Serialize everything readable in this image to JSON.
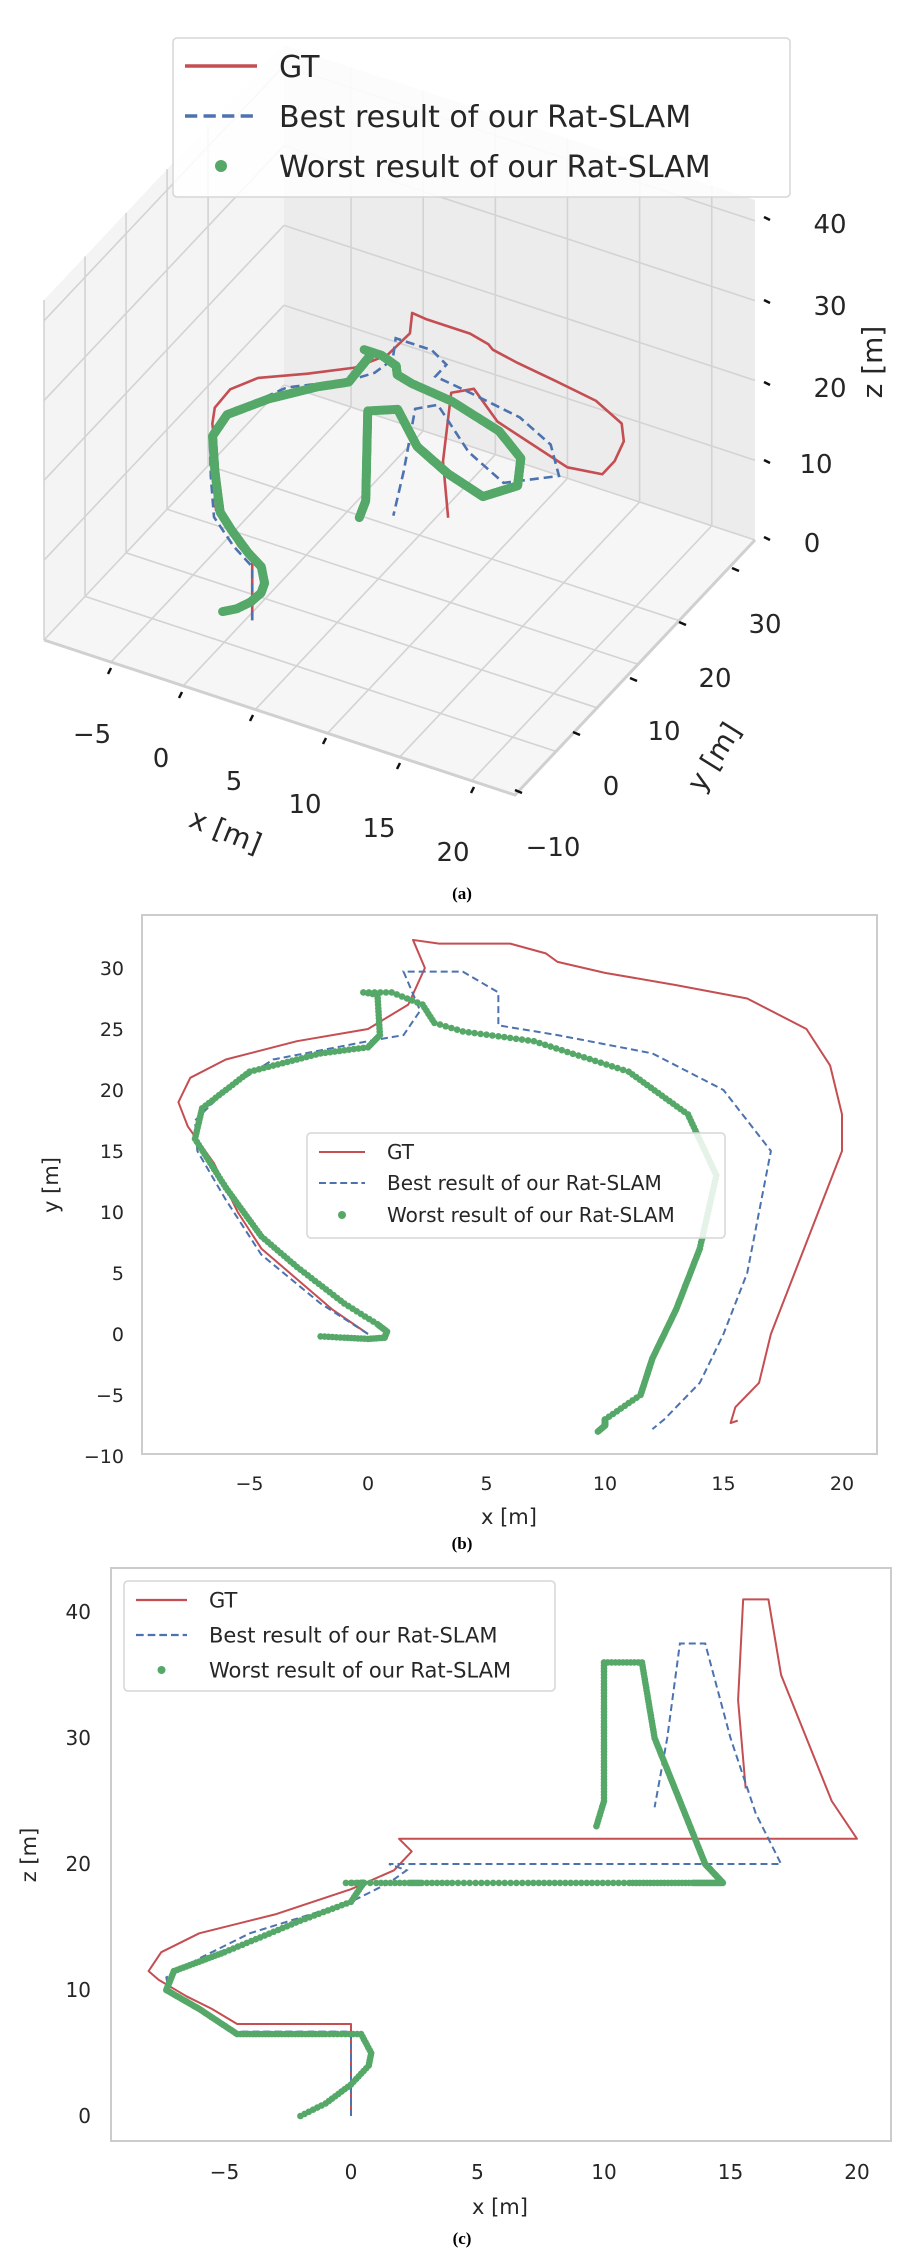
{
  "colors": {
    "gt": "#c44e52",
    "best": "#4c72b0",
    "worst": "#55a868",
    "pane": "#f2f2f2",
    "grid": "#d3d3d3"
  },
  "legend": {
    "gt": "GT",
    "best": "Best result of our Rat-SLAM",
    "worst": "Worst result of our Rat-SLAM"
  },
  "captions": {
    "a": "(a)",
    "b": "(b)",
    "c": "(c)"
  },
  "trajectories": {
    "gt": [
      [
        0,
        0,
        0
      ],
      [
        0,
        0,
        7.3
      ],
      [
        -1.5,
        2,
        7.3
      ],
      [
        -3,
        4.5,
        7.3
      ],
      [
        -4.5,
        7,
        7.3
      ],
      [
        -5.5,
        10,
        8.5
      ],
      [
        -6.5,
        14,
        9.5
      ],
      [
        -7.6,
        17,
        10.8
      ],
      [
        -8,
        19,
        11.5
      ],
      [
        -7.5,
        21,
        13
      ],
      [
        -6,
        22.5,
        14.5
      ],
      [
        -3,
        24,
        16
      ],
      [
        0,
        25,
        18
      ],
      [
        1.7,
        27,
        19.5
      ],
      [
        2.4,
        30,
        21
      ],
      [
        1.9,
        32.3,
        22
      ],
      [
        3,
        32,
        22
      ],
      [
        6,
        32,
        22
      ],
      [
        7.5,
        31.2,
        22
      ],
      [
        8,
        30.5,
        22
      ],
      [
        10,
        29.6,
        22
      ],
      [
        13,
        28.6,
        22
      ],
      [
        16,
        27.5,
        22
      ],
      [
        18.5,
        25,
        22
      ],
      [
        19.5,
        22,
        22
      ],
      [
        20,
        18,
        22
      ],
      [
        20,
        15,
        22
      ],
      [
        19,
        10,
        25
      ],
      [
        18,
        5,
        30
      ],
      [
        17,
        0,
        35
      ],
      [
        16.5,
        -4,
        41
      ],
      [
        15.5,
        -6,
        41
      ],
      [
        15.3,
        -7.3,
        33
      ],
      [
        15.6,
        -7.1,
        26
      ]
    ],
    "best": [
      [
        0,
        0,
        0
      ],
      [
        0,
        0,
        6.7
      ],
      [
        -2,
        2.5,
        6.7
      ],
      [
        -4.5,
        6.5,
        6.7
      ],
      [
        -6,
        11,
        8.5
      ],
      [
        -7.2,
        15,
        10
      ],
      [
        -7.3,
        17.5,
        11
      ],
      [
        -6,
        20,
        12.5
      ],
      [
        -4,
        22.5,
        14.5
      ],
      [
        0,
        24,
        17
      ],
      [
        1.5,
        24.5,
        18.5
      ],
      [
        2.2,
        26.5,
        19.5
      ],
      [
        1.5,
        29.7,
        20
      ],
      [
        4,
        29.7,
        20
      ],
      [
        5.5,
        28,
        20
      ],
      [
        5.5,
        25.3,
        20
      ],
      [
        8,
        24.5,
        20
      ],
      [
        12,
        23,
        20
      ],
      [
        15,
        20,
        20
      ],
      [
        17,
        15,
        20
      ],
      [
        16.5,
        10,
        22
      ],
      [
        16,
        5,
        24
      ],
      [
        15,
        0,
        30
      ],
      [
        14,
        -4,
        37.5
      ],
      [
        13,
        -6,
        37.5
      ],
      [
        12.5,
        -7,
        30
      ],
      [
        12,
        -7.8,
        24.5
      ]
    ],
    "worst": [
      [
        -2,
        -0.2,
        0
      ],
      [
        -1,
        -0.3,
        1
      ],
      [
        0,
        -0.4,
        2.5
      ],
      [
        0.7,
        -0.3,
        4
      ],
      [
        0.8,
        0.2,
        5
      ],
      [
        0.4,
        0.8,
        6.5
      ],
      [
        -1,
        2.5,
        6.5
      ],
      [
        -3,
        5.5,
        6.5
      ],
      [
        -4.5,
        8,
        6.5
      ],
      [
        -6,
        12,
        8.5
      ],
      [
        -7.3,
        16,
        10
      ],
      [
        -7,
        18.5,
        11.5
      ],
      [
        -5,
        21.5,
        13
      ],
      [
        -2,
        23,
        15.5
      ],
      [
        0,
        23.5,
        17
      ],
      [
        0.5,
        24.5,
        18.5
      ],
      [
        0.4,
        27.8,
        18.5
      ],
      [
        -0.2,
        28,
        18.5
      ],
      [
        1,
        28,
        18.5
      ],
      [
        2.3,
        27,
        18.5
      ],
      [
        2.8,
        25.5,
        18.5
      ],
      [
        4,
        24.8,
        18.5
      ],
      [
        7,
        24,
        18.5
      ],
      [
        11,
        21.5,
        18.5
      ],
      [
        13.5,
        18,
        18.5
      ],
      [
        14.7,
        13,
        18.5
      ],
      [
        14,
        7,
        20
      ],
      [
        13,
        2,
        25
      ],
      [
        12,
        -2,
        30
      ],
      [
        11.5,
        -5,
        36
      ],
      [
        10,
        -7,
        36
      ],
      [
        10,
        -7.5,
        25
      ],
      [
        9.7,
        -8,
        23
      ]
    ]
  },
  "chart_data": [
    {
      "type": "line",
      "projection": "3d",
      "title": "",
      "xlabel": "x [m]",
      "ylabel": "y [m]",
      "zlabel": "z [m]",
      "xticks": [
        "−5",
        "0",
        "5",
        "10",
        "15",
        "20"
      ],
      "yticks": [
        "−10",
        "0",
        "10",
        "20",
        "30"
      ],
      "zticks": [
        "0",
        "10",
        "20",
        "30",
        "40"
      ],
      "legend_position": "top-center",
      "series": [
        "gt",
        "best",
        "worst"
      ]
    },
    {
      "type": "line",
      "title": "",
      "xlabel": "x [m]",
      "ylabel": "y [m]",
      "xlim": [
        -9.5,
        21.5
      ],
      "ylim": [
        -10,
        34.3
      ],
      "xticks": [
        "−5",
        "0",
        "5",
        "10",
        "15",
        "20"
      ],
      "xtick_values": [
        -5,
        0,
        5,
        10,
        15,
        20
      ],
      "yticks": [
        "−10",
        "−5",
        "0",
        "5",
        "10",
        "15",
        "20",
        "25",
        "30"
      ],
      "ytick_values": [
        -10,
        -5,
        0,
        5,
        10,
        15,
        20,
        25,
        30
      ],
      "legend_position": "center",
      "series": [
        "gt",
        "best",
        "worst"
      ]
    },
    {
      "type": "line",
      "title": "",
      "xlabel": "x [m]",
      "ylabel": "z [m]",
      "xlim": [
        -9.5,
        21.3
      ],
      "ylim": [
        -2,
        43.5
      ],
      "xticks": [
        "−5",
        "0",
        "5",
        "10",
        "15",
        "20"
      ],
      "xtick_values": [
        -5,
        0,
        5,
        10,
        15,
        20
      ],
      "yticks": [
        "0",
        "10",
        "20",
        "30",
        "40"
      ],
      "ytick_values": [
        0,
        10,
        20,
        30,
        40
      ],
      "legend_position": "top-left",
      "series": [
        "gt",
        "best",
        "worst"
      ]
    }
  ]
}
